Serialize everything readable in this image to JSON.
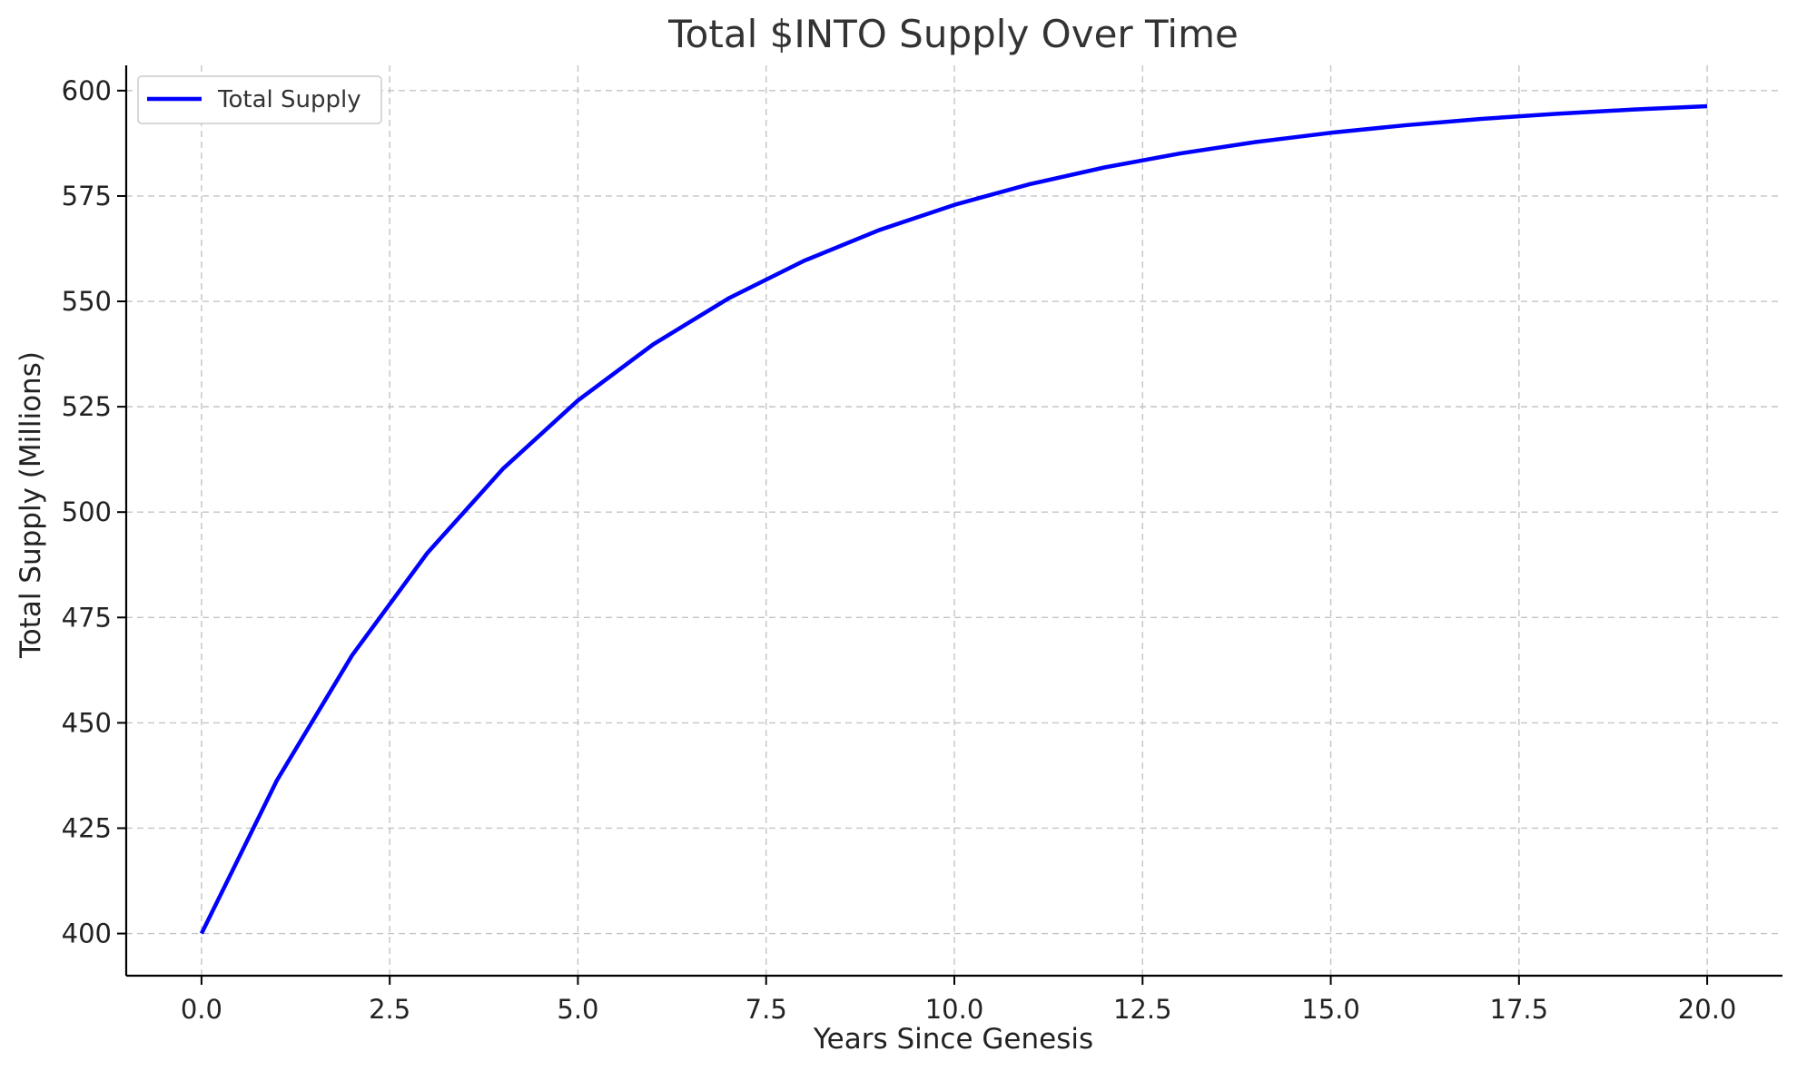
{
  "chart_data": {
    "type": "line",
    "title": "Total $INTO Supply Over Time",
    "xlabel": "Years Since Genesis",
    "ylabel": "Total Supply (Millions)",
    "xlim": [
      -1,
      21
    ],
    "ylim": [
      390,
      606
    ],
    "xticks": [
      0,
      2.5,
      5,
      7.5,
      10,
      12.5,
      15,
      17.5,
      20
    ],
    "xtick_labels": [
      "0.0",
      "2.5",
      "5.0",
      "7.5",
      "10.0",
      "12.5",
      "15.0",
      "17.5",
      "20.0"
    ],
    "yticks": [
      400,
      425,
      450,
      475,
      500,
      525,
      550,
      575,
      600
    ],
    "ytick_labels": [
      "400",
      "425",
      "450",
      "475",
      "500",
      "525",
      "550",
      "575",
      "600"
    ],
    "grid": true,
    "legend": {
      "position": "top-left"
    },
    "series": [
      {
        "name": "Total Supply",
        "color": "#0000ff",
        "x": [
          0,
          1,
          2,
          3,
          4,
          5,
          6,
          7,
          8,
          9,
          10,
          11,
          12,
          13,
          14,
          15,
          16,
          17,
          18,
          19,
          20
        ],
        "values": [
          400,
          436.3,
          466,
          490.3,
          510.2,
          526.5,
          539.8,
          550.7,
          559.6,
          566.9,
          572.9,
          577.8,
          581.8,
          585.1,
          587.8,
          590,
          591.8,
          593.3,
          594.5,
          595.5,
          596.3
        ]
      }
    ]
  }
}
